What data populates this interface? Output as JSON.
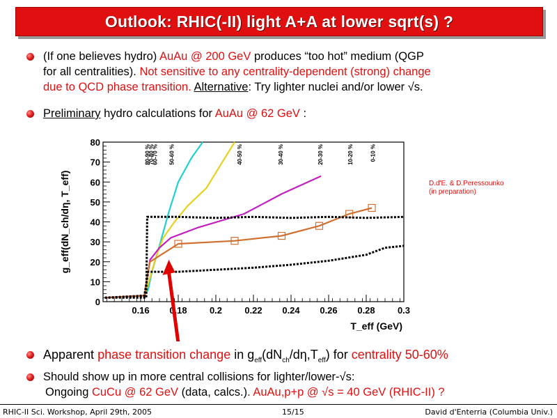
{
  "slide": {
    "title": "Outlook: RHIC(-II) light A+A at lower sqrt(s) ?",
    "bullet1": {
      "part1": "(If one believes hydro) ",
      "part2": "AuAu @ 200 GeV",
      "part3": " produces “too hot” medium (QGP",
      "line2a": "for all centralities). ",
      "line2b": "Not sensitive to any centrality-dependent (strong) change",
      "line3a": "due to QCD phase transition.",
      "line3b": " ",
      "line3c": "Alternative",
      "line3d": ": Try lighter nuclei and/or lower √s."
    },
    "bullet2": {
      "part1": "Preliminary",
      "part2": " hydro calculations for ",
      "part3": "AuAu @ 62 GeV",
      "part4": " :"
    },
    "reference_line1": "D.d'E. & D.Peressounko",
    "reference_line2": "(in preparation)",
    "bullet3": {
      "part1": "Apparent ",
      "part2": "phase transition change",
      "part3": " in g",
      "sub1": "eff",
      "part4": "(dN",
      "sub2": "ch",
      "part5": "/dη,T",
      "sub3": "eff",
      "part6": ") for ",
      "part7": "centrality 50-60%"
    },
    "bullet4": {
      "line1": "Should show up in more central collisions for lighter/lower-√s:",
      "line2a": "Ongoing ",
      "line2b": "CuCu @ 62 GeV",
      "line2c": " (data, calcs.). ",
      "line2d": "AuAu,p+p @ √s = 40 GeV (RHIC-II) ?"
    },
    "footer": {
      "left": "RHIC-II Sci. Workshop, April 29th, 2005",
      "center": "15/15",
      "right": "David d'Enterria (Columbia Univ.)"
    }
  },
  "chart_data": {
    "type": "line",
    "xlabel": "T_eff (GeV)",
    "ylabel": "g_eff(dN_ch/dη, T_eff)",
    "xlim": [
      0.14,
      0.3
    ],
    "ylim": [
      0,
      80
    ],
    "xticks": [
      "0.16",
      "0.18",
      "0.2",
      "0.22",
      "0.24",
      "0.26",
      "0.28",
      "0.3"
    ],
    "yticks": [
      "0",
      "10",
      "20",
      "30",
      "40",
      "50",
      "60",
      "70",
      "80"
    ],
    "centrality_labels": [
      {
        "label": "80-90 %",
        "x": 0.1635
      },
      {
        "label": "70-80 %",
        "x": 0.1655
      },
      {
        "label": "60-70 %",
        "x": 0.1675
      },
      {
        "label": "50-60 %",
        "x": 0.1765
      },
      {
        "label": "40-50 %",
        "x": 0.2125
      },
      {
        "label": "30-40 %",
        "x": 0.2345
      },
      {
        "label": "20-30 %",
        "x": 0.2555
      },
      {
        "label": "10-20 %",
        "x": 0.2715
      },
      {
        "label": "0-10 %",
        "x": 0.2835
      }
    ],
    "series": [
      {
        "color": "#20d0d0",
        "style": "solid",
        "x": [
          0.141,
          0.162,
          0.164,
          0.166,
          0.17,
          0.175,
          0.18,
          0.187,
          0.193
        ],
        "y": [
          2,
          3,
          6,
          15,
          28,
          45,
          60,
          72,
          80
        ]
      },
      {
        "color": "#e8d020",
        "style": "solid",
        "x": [
          0.141,
          0.162,
          0.165,
          0.168,
          0.172,
          0.178,
          0.185,
          0.195,
          0.21
        ],
        "y": [
          2,
          3,
          12,
          22,
          32,
          40,
          48,
          57,
          80
        ]
      },
      {
        "color": "#c020c0",
        "style": "solid",
        "x": [
          0.141,
          0.162,
          0.164,
          0.165,
          0.17,
          0.176,
          0.19,
          0.215,
          0.235,
          0.256
        ],
        "y": [
          2,
          3,
          15,
          21,
          27,
          32,
          37,
          44,
          54,
          63
        ]
      },
      {
        "color": "#d07030",
        "style": "solid",
        "markers": "open-square",
        "x": [
          0.141,
          0.162,
          0.164,
          0.165,
          0.18,
          0.21,
          0.235,
          0.255,
          0.271,
          0.283
        ],
        "y": [
          2,
          3,
          15,
          20,
          29,
          30.5,
          33,
          38,
          44,
          47
        ]
      },
      {
        "color": "#000000",
        "style": "dotted",
        "x": [
          0.141,
          0.163,
          0.1635,
          0.18,
          0.2,
          0.22,
          0.24,
          0.26,
          0.28,
          0.3
        ],
        "y": [
          2,
          2,
          42.5,
          42.5,
          42,
          42.5,
          42,
          42.5,
          42,
          42.5
        ]
      },
      {
        "color": "#000000",
        "style": "dotted",
        "x": [
          0.141,
          0.162,
          0.164,
          0.18,
          0.2,
          0.22,
          0.24,
          0.26,
          0.28,
          0.29,
          0.3
        ],
        "y": [
          2,
          3,
          15,
          15,
          16,
          17,
          18.5,
          20.5,
          23.5,
          27,
          28
        ]
      }
    ],
    "annotations": [
      {
        "type": "arrow",
        "color": "#e00000",
        "from": [
          0.175,
          -22
        ],
        "to": [
          0.175,
          21
        ]
      }
    ],
    "grid": false,
    "legend": "none"
  }
}
